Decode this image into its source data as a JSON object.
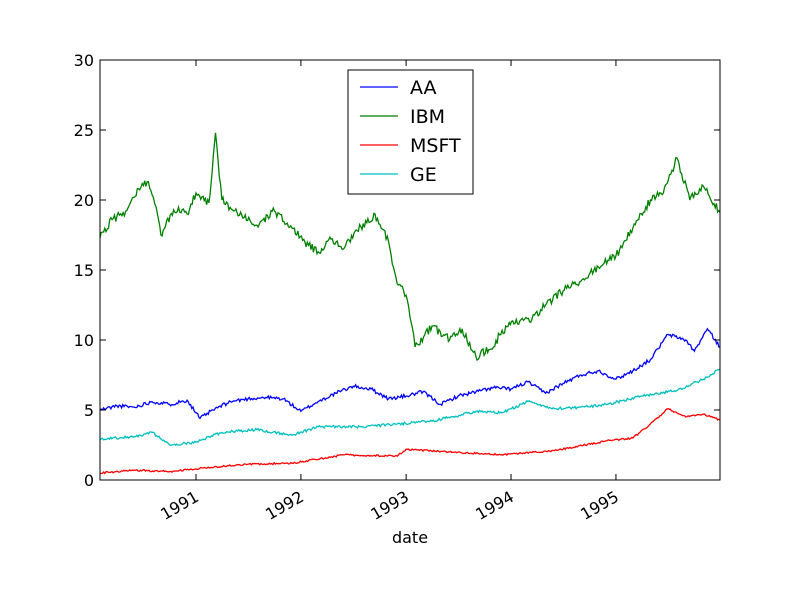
{
  "chart_data": {
    "type": "line",
    "title": "",
    "xlabel": "date",
    "ylabel": "",
    "x_tick_labels": [
      "1991",
      "1992",
      "1993",
      "1994",
      "1995"
    ],
    "y_tick_labels": [
      "0",
      "5",
      "10",
      "15",
      "20",
      "25",
      "30"
    ],
    "xlim": [
      "1990-02-01",
      "1995-12-29"
    ],
    "ylim": [
      0,
      30
    ],
    "grid": false,
    "legend_position": "top-center",
    "series": [
      {
        "name": "AA",
        "color": "#0000ff",
        "points": [
          [
            "1990-02-01",
            5.0
          ],
          [
            "1990-04-01",
            5.3
          ],
          [
            "1990-06-01",
            5.2
          ],
          [
            "1990-08-01",
            5.6
          ],
          [
            "1990-10-01",
            5.4
          ],
          [
            "1990-12-01",
            5.7
          ],
          [
            "1991-01-15",
            4.4
          ],
          [
            "1991-03-01",
            5.0
          ],
          [
            "1991-05-01",
            5.6
          ],
          [
            "1991-07-01",
            5.8
          ],
          [
            "1991-09-01",
            5.9
          ],
          [
            "1991-11-01",
            5.8
          ],
          [
            "1992-01-01",
            4.9
          ],
          [
            "1992-03-01",
            5.6
          ],
          [
            "1992-05-01",
            6.2
          ],
          [
            "1992-07-01",
            6.7
          ],
          [
            "1992-09-01",
            6.5
          ],
          [
            "1992-11-01",
            5.8
          ],
          [
            "1993-01-01",
            6.0
          ],
          [
            "1993-03-01",
            6.3
          ],
          [
            "1993-05-01",
            5.4
          ],
          [
            "1993-07-01",
            6.0
          ],
          [
            "1993-09-01",
            6.3
          ],
          [
            "1993-11-01",
            6.6
          ],
          [
            "1994-01-01",
            6.5
          ],
          [
            "1994-03-01",
            7.0
          ],
          [
            "1994-05-01",
            6.2
          ],
          [
            "1994-07-01",
            6.9
          ],
          [
            "1994-09-01",
            7.5
          ],
          [
            "1994-11-01",
            7.8
          ],
          [
            "1995-01-01",
            7.2
          ],
          [
            "1995-03-01",
            7.8
          ],
          [
            "1995-05-01",
            8.6
          ],
          [
            "1995-07-01",
            10.4
          ],
          [
            "1995-09-01",
            10.0
          ],
          [
            "1995-10-01",
            9.2
          ],
          [
            "1995-11-15",
            10.8
          ],
          [
            "1995-12-29",
            9.5
          ]
        ]
      },
      {
        "name": "IBM",
        "color": "#008000",
        "points": [
          [
            "1990-02-01",
            17.3
          ],
          [
            "1990-03-15",
            18.6
          ],
          [
            "1990-05-01",
            19.2
          ],
          [
            "1990-06-15",
            20.8
          ],
          [
            "1990-07-15",
            21.3
          ],
          [
            "1990-08-15",
            19.5
          ],
          [
            "1990-09-01",
            17.5
          ],
          [
            "1990-10-15",
            19.3
          ],
          [
            "1990-12-01",
            19.0
          ],
          [
            "1991-01-01",
            20.5
          ],
          [
            "1991-02-15",
            19.8
          ],
          [
            "1991-03-10",
            24.8
          ],
          [
            "1991-04-01",
            20.0
          ],
          [
            "1991-06-01",
            18.9
          ],
          [
            "1991-08-01",
            18.2
          ],
          [
            "1991-10-01",
            19.2
          ],
          [
            "1991-12-01",
            18.0
          ],
          [
            "1992-01-15",
            17.0
          ],
          [
            "1992-03-01",
            16.3
          ],
          [
            "1992-04-15",
            17.2
          ],
          [
            "1992-06-01",
            16.6
          ],
          [
            "1992-07-15",
            17.8
          ],
          [
            "1992-09-15",
            19.0
          ],
          [
            "1992-11-01",
            17.0
          ],
          [
            "1992-12-01",
            14.0
          ],
          [
            "1993-01-01",
            13.2
          ],
          [
            "1993-02-01",
            9.5
          ],
          [
            "1993-04-01",
            11.0
          ],
          [
            "1993-06-01",
            10.0
          ],
          [
            "1993-07-15",
            10.8
          ],
          [
            "1993-09-01",
            8.8
          ],
          [
            "1993-11-01",
            9.5
          ],
          [
            "1993-12-01",
            10.7
          ],
          [
            "1994-01-15",
            11.2
          ],
          [
            "1994-03-15",
            11.5
          ],
          [
            "1994-05-01",
            12.5
          ],
          [
            "1994-07-01",
            13.5
          ],
          [
            "1994-09-01",
            14.2
          ],
          [
            "1994-11-01",
            15.2
          ],
          [
            "1995-01-01",
            16.0
          ],
          [
            "1995-03-01",
            18.0
          ],
          [
            "1995-05-01",
            20.0
          ],
          [
            "1995-06-15",
            20.5
          ],
          [
            "1995-08-01",
            23.0
          ],
          [
            "1995-09-15",
            20.0
          ],
          [
            "1995-11-01",
            21.0
          ],
          [
            "1995-12-29",
            19.1
          ]
        ]
      },
      {
        "name": "MSFT",
        "color": "#ff0000",
        "points": [
          [
            "1990-02-01",
            0.5
          ],
          [
            "1990-06-01",
            0.7
          ],
          [
            "1990-10-01",
            0.6
          ],
          [
            "1991-01-01",
            0.8
          ],
          [
            "1991-06-01",
            1.1
          ],
          [
            "1991-12-01",
            1.2
          ],
          [
            "1992-06-01",
            1.8
          ],
          [
            "1992-12-01",
            1.7
          ],
          [
            "1993-01-01",
            2.2
          ],
          [
            "1993-06-01",
            2.0
          ],
          [
            "1993-12-01",
            1.8
          ],
          [
            "1994-06-01",
            2.1
          ],
          [
            "1994-12-01",
            2.8
          ],
          [
            "1995-03-01",
            3.0
          ],
          [
            "1995-05-01",
            4.0
          ],
          [
            "1995-07-01",
            5.1
          ],
          [
            "1995-09-01",
            4.5
          ],
          [
            "1995-11-01",
            4.7
          ],
          [
            "1995-12-29",
            4.3
          ]
        ]
      },
      {
        "name": "GE",
        "color": "#00bfbf",
        "points": [
          [
            "1990-02-01",
            2.9
          ],
          [
            "1990-06-01",
            3.1
          ],
          [
            "1990-08-01",
            3.4
          ],
          [
            "1990-10-01",
            2.5
          ],
          [
            "1991-01-01",
            2.7
          ],
          [
            "1991-04-01",
            3.4
          ],
          [
            "1991-08-01",
            3.6
          ],
          [
            "1991-12-01",
            3.2
          ],
          [
            "1992-03-01",
            3.8
          ],
          [
            "1992-08-01",
            3.8
          ],
          [
            "1992-12-01",
            4.0
          ],
          [
            "1993-04-01",
            4.2
          ],
          [
            "1993-09-01",
            4.9
          ],
          [
            "1993-12-01",
            4.8
          ],
          [
            "1994-03-01",
            5.6
          ],
          [
            "1994-06-01",
            5.1
          ],
          [
            "1994-09-01",
            5.2
          ],
          [
            "1994-12-01",
            5.4
          ],
          [
            "1995-04-01",
            6.0
          ],
          [
            "1995-08-01",
            6.4
          ],
          [
            "1995-11-01",
            7.2
          ],
          [
            "1995-12-29",
            7.9
          ]
        ]
      }
    ]
  }
}
